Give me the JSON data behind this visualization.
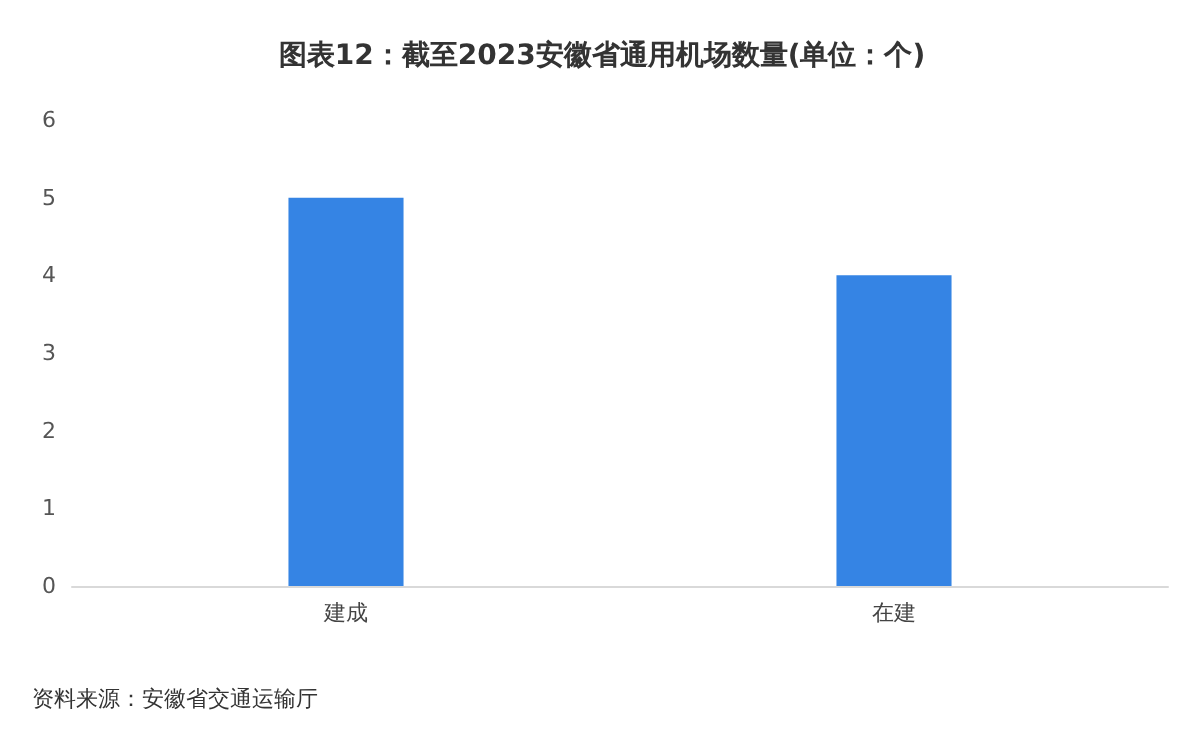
{
  "chart_data": {
    "type": "bar",
    "title": "图表12：截至2023安徽省通用机场数量(单位：个)",
    "categories": [
      "建成",
      "在建"
    ],
    "values": [
      5,
      4
    ],
    "color": "#3584e4",
    "ylim": [
      0,
      6
    ],
    "yticks": [
      0,
      1,
      2,
      3,
      4,
      5,
      6
    ],
    "grid": false,
    "annotations": [
      "资料来源：安徽省交通运输厅"
    ]
  }
}
